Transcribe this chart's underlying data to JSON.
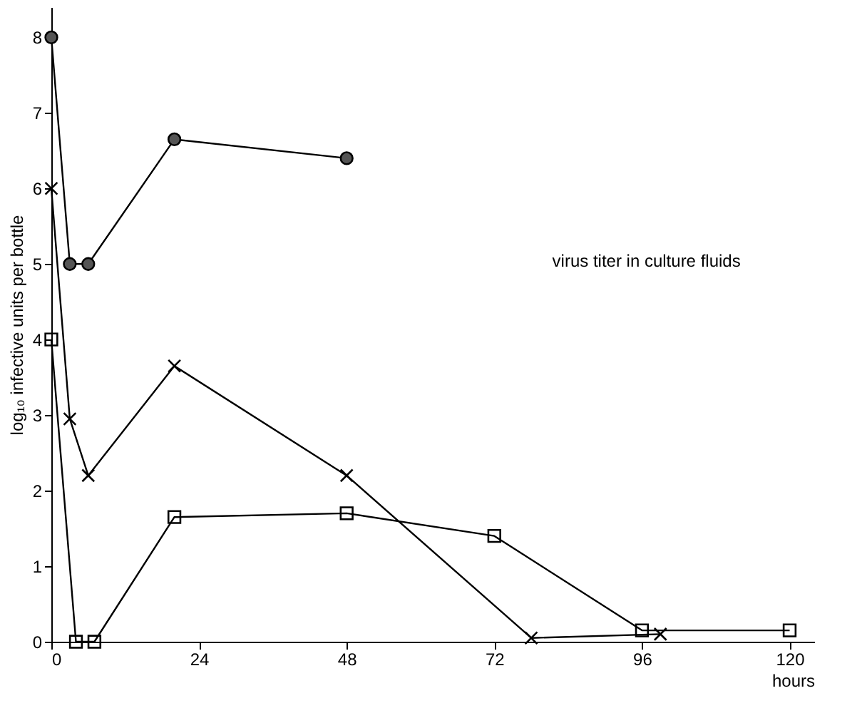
{
  "chart_data": {
    "type": "line",
    "xlabel": "hours",
    "ylabel": "log₁₀ infective units per bottle",
    "annotations": [
      "virus titer in culture fluids"
    ],
    "xlim": [
      0,
      124
    ],
    "ylim": [
      0,
      8.4
    ],
    "xticks": [
      0,
      24,
      48,
      72,
      96,
      120
    ],
    "yticks": [
      0,
      1,
      2,
      3,
      4,
      5,
      6,
      7,
      8
    ],
    "series": [
      {
        "color": "#000000",
        "marker": "circle",
        "x": [
          0,
          3,
          6,
          20,
          48
        ],
        "values": [
          8,
          5,
          5,
          6.65,
          6.4
        ]
      },
      {
        "color": "#000000",
        "marker": "cross",
        "x": [
          0,
          3,
          6,
          20,
          48,
          78,
          99
        ],
        "values": [
          6,
          2.95,
          2.2,
          3.65,
          2.2,
          0.05,
          0.1
        ]
      },
      {
        "color": "#000000",
        "marker": "square",
        "x": [
          0,
          4,
          7,
          20,
          48,
          72,
          96,
          120
        ],
        "values": [
          4,
          0,
          0,
          1.65,
          1.7,
          1.4,
          0.15,
          0.15
        ]
      }
    ]
  }
}
